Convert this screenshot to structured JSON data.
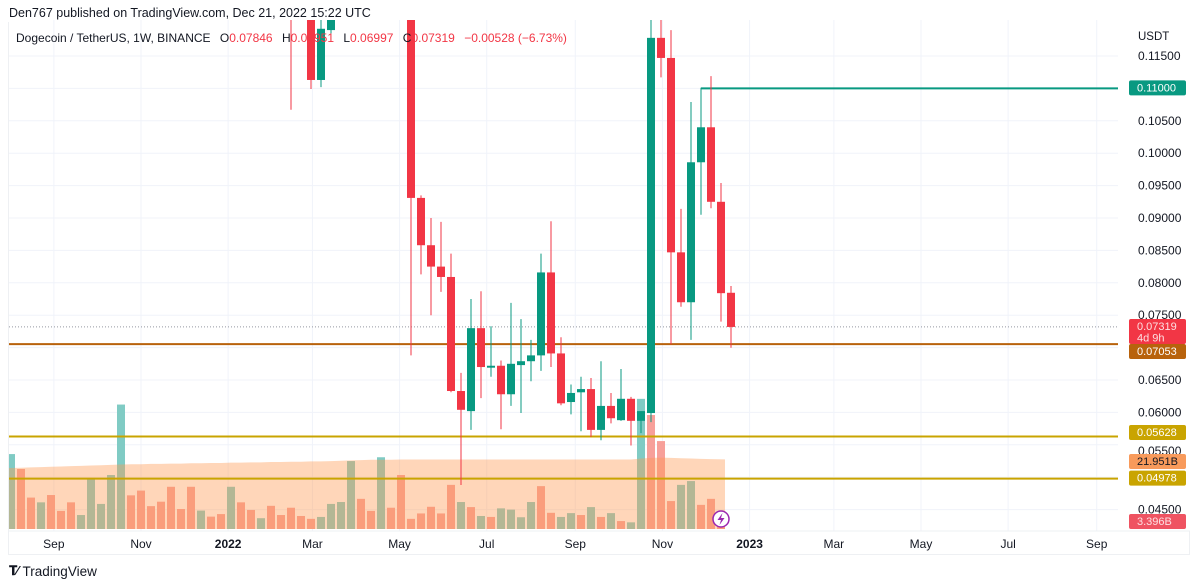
{
  "publisher_line": "Den767 published on TradingView.com, Dec 21, 2022 15:22 UTC",
  "legend": {
    "symbol": "Dogecoin / TetherUS, 1W, BINANCE",
    "o_label": "O",
    "o": "0.07846",
    "h_label": "H",
    "h": "0.07951",
    "l_label": "L",
    "l": "0.06997",
    "c_label": "C",
    "c": "0.07319",
    "change": "−0.00528 (−6.73%)"
  },
  "footer": {
    "logo_text": "TradingView",
    "logo_icon": "tradingview-logo-icon"
  },
  "price_axis": {
    "currency": "USDT",
    "ticks": [
      "0.11500",
      "0.10500",
      "0.10000",
      "0.09500",
      "0.09000",
      "0.08500",
      "0.08000",
      "0.07500",
      "0.06500",
      "0.06000",
      "0.05500",
      "0.04500"
    ]
  },
  "time_axis": [
    {
      "label": "Sep",
      "date": "2021-09-01",
      "bold": false
    },
    {
      "label": "Nov",
      "date": "2021-11-01",
      "bold": false
    },
    {
      "label": "2022",
      "date": "2022-01-01",
      "bold": true
    },
    {
      "label": "Mar",
      "date": "2022-03-01",
      "bold": false
    },
    {
      "label": "May",
      "date": "2022-05-01",
      "bold": false
    },
    {
      "label": "Jul",
      "date": "2022-07-01",
      "bold": false
    },
    {
      "label": "Sep",
      "date": "2022-09-01",
      "bold": false
    },
    {
      "label": "Nov",
      "date": "2022-11-01",
      "bold": false
    },
    {
      "label": "2023",
      "date": "2023-01-01",
      "bold": true
    },
    {
      "label": "Mar",
      "date": "2023-03-01",
      "bold": false
    },
    {
      "label": "May",
      "date": "2023-05-01",
      "bold": false
    },
    {
      "label": "Jul",
      "date": "2023-07-01",
      "bold": false
    },
    {
      "label": "Sep",
      "date": "2023-09-01",
      "bold": false
    }
  ],
  "colors": {
    "up": "#089981",
    "down": "#f23645",
    "vol_up": "#80cbc4",
    "vol_down": "#f7a09a",
    "vol_ma_fill": "rgba(255,152,80,0.4)",
    "grid": "#f0f3fa"
  },
  "levels": [
    {
      "price": 0.11,
      "label": "0.11000",
      "color": "#089981",
      "from": "2022-11-28"
    },
    {
      "price": 0.07053,
      "label": "0.07053",
      "color": "#b8620c",
      "from": null
    },
    {
      "price": 0.05628,
      "label": "0.05628",
      "color": "#c9a400",
      "from": null
    },
    {
      "price": 0.04978,
      "label": "0.04978",
      "color": "#c9a400",
      "from": null
    }
  ],
  "last_price": {
    "price": 0.07319,
    "label": "0.07319",
    "countdown": "4d 9h",
    "color": "#f23645"
  },
  "volume_labels": {
    "ma": {
      "label": "21.951B",
      "value": 21.951,
      "color": "#f89a5b"
    },
    "last": {
      "label": "3.396B",
      "value": 3.396,
      "color": "#ef5361"
    }
  },
  "chart_data": {
    "type": "candlestick",
    "interval": "1W",
    "ylim": [
      0.045,
      0.118
    ],
    "candles_columns": [
      "date",
      "open",
      "high",
      "low",
      "close"
    ],
    "candles": [
      [
        "2022-02-14",
        0.132,
        0.138,
        0.1067,
        0.123
      ],
      [
        "2022-02-28",
        0.13,
        0.135,
        0.1099,
        0.1113
      ],
      [
        "2022-03-07",
        0.1113,
        0.123,
        0.1102,
        0.1192
      ],
      [
        "2022-03-14",
        0.119,
        0.128,
        0.1185,
        0.123
      ],
      [
        "2022-05-09",
        0.14,
        0.145,
        0.0688,
        0.0931
      ],
      [
        "2022-05-16",
        0.0931,
        0.0935,
        0.0813,
        0.0858
      ],
      [
        "2022-05-23",
        0.0858,
        0.09,
        0.075,
        0.0825
      ],
      [
        "2022-05-30",
        0.0825,
        0.0894,
        0.0786,
        0.0809
      ],
      [
        "2022-06-06",
        0.0809,
        0.0845,
        0.0631,
        0.0633
      ],
      [
        "2022-06-13",
        0.0633,
        0.0661,
        0.0488,
        0.0604
      ],
      [
        "2022-06-20",
        0.0602,
        0.0775,
        0.0573,
        0.073
      ],
      [
        "2022-06-27",
        0.073,
        0.0787,
        0.0622,
        0.067
      ],
      [
        "2022-07-04",
        0.0669,
        0.0733,
        0.0655,
        0.0672
      ],
      [
        "2022-07-11",
        0.0672,
        0.068,
        0.0574,
        0.0628
      ],
      [
        "2022-07-18",
        0.0628,
        0.0769,
        0.061,
        0.0675
      ],
      [
        "2022-07-25",
        0.0673,
        0.0744,
        0.0599,
        0.0679
      ],
      [
        "2022-08-01",
        0.0679,
        0.0712,
        0.0648,
        0.0688
      ],
      [
        "2022-08-08",
        0.0688,
        0.0845,
        0.0664,
        0.0816
      ],
      [
        "2022-08-15",
        0.0816,
        0.0895,
        0.067,
        0.0691
      ],
      [
        "2022-08-22",
        0.0691,
        0.0716,
        0.0611,
        0.0614
      ],
      [
        "2022-08-29",
        0.0616,
        0.0643,
        0.0597,
        0.063
      ],
      [
        "2022-09-05",
        0.0631,
        0.0655,
        0.0571,
        0.0636
      ],
      [
        "2022-09-12",
        0.0636,
        0.0653,
        0.0562,
        0.0573
      ],
      [
        "2022-09-19",
        0.0573,
        0.0679,
        0.0557,
        0.061
      ],
      [
        "2022-09-26",
        0.061,
        0.063,
        0.0583,
        0.0591
      ],
      [
        "2022-10-03",
        0.0588,
        0.0667,
        0.0587,
        0.0621
      ],
      [
        "2022-10-10",
        0.0621,
        0.0624,
        0.0549,
        0.0587
      ],
      [
        "2022-10-17",
        0.0587,
        0.0601,
        0.0568,
        0.0602
      ],
      [
        "2022-10-24",
        0.0599,
        0.121,
        0.0585,
        0.1178
      ],
      [
        "2022-10-31",
        0.1178,
        0.121,
        0.1117,
        0.1147
      ],
      [
        "2022-11-07",
        0.1147,
        0.119,
        0.0705,
        0.0847
      ],
      [
        "2022-11-14",
        0.0847,
        0.0914,
        0.0763,
        0.077
      ],
      [
        "2022-11-21",
        0.077,
        0.1079,
        0.0712,
        0.0986
      ],
      [
        "2022-11-28",
        0.0986,
        0.1101,
        0.0905,
        0.104
      ],
      [
        "2022-12-05",
        0.104,
        0.1119,
        0.0915,
        0.0925
      ],
      [
        "2022-12-12",
        0.0925,
        0.0954,
        0.074,
        0.0784
      ],
      [
        "2022-12-19",
        0.07846,
        0.07951,
        0.06997,
        0.07319
      ]
    ],
    "volume_start": "2021-08-02",
    "volume_unit": "B",
    "volume": [
      23.6,
      18.9,
      9.9,
      8.4,
      10.7,
      5.7,
      8.4,
      4.4,
      16.0,
      7.9,
      17.0,
      39.2,
      10.6,
      12.1,
      7.2,
      8.6,
      13.3,
      6.3,
      13.3,
      5.8,
      3.9,
      4.7,
      13.3,
      8.4,
      6.0,
      3.4,
      7.3,
      4.4,
      6.7,
      4.1,
      3.2,
      3.8,
      7.9,
      8.5,
      21.4,
      9.5,
      5.7,
      22.6,
      6.7,
      17.0,
      3.2,
      4.9,
      7.0,
      4.9,
      13.9,
      8.5,
      6.9,
      4.1,
      3.8,
      6.5,
      6.1,
      3.7,
      8.5,
      13.5,
      5.1,
      3.8,
      5.0,
      4.4,
      6.9,
      3.8,
      5.0,
      2.5,
      2.1,
      41.0,
      35.9,
      27.7,
      8.8,
      13.9,
      15.1,
      7.6,
      9.5,
      3.396
    ],
    "volume_dir": [
      "up",
      "down",
      "down",
      "up",
      "down",
      "down",
      "down",
      "up",
      "up",
      "up",
      "up",
      "up",
      "down",
      "down",
      "down",
      "down",
      "down",
      "down",
      "down",
      "up",
      "down",
      "down",
      "up",
      "down",
      "down",
      "up",
      "down",
      "down",
      "down",
      "down",
      "down",
      "up",
      "up",
      "up",
      "up",
      "down",
      "down",
      "up",
      "down",
      "down",
      "down",
      "down",
      "down",
      "down",
      "down",
      "up",
      "down",
      "up",
      "down",
      "up",
      "up",
      "up",
      "up",
      "down",
      "down",
      "up",
      "up",
      "down",
      "up",
      "down",
      "up",
      "down",
      "up",
      "up",
      "down",
      "down",
      "down",
      "up",
      "up",
      "down",
      "down",
      "down"
    ],
    "volume_ma": [
      19.2,
      19.3,
      19.4,
      19.5,
      19.6,
      19.7,
      19.8,
      19.9,
      20.0,
      20.1,
      20.2,
      20.3,
      20.4,
      20.4,
      20.5,
      20.5,
      20.6,
      20.6,
      20.7,
      20.7,
      20.8,
      20.8,
      20.9,
      20.9,
      21.0,
      21.0,
      21.1,
      21.1,
      21.2,
      21.2,
      21.3,
      21.3,
      21.4,
      21.5,
      21.6,
      21.7,
      21.8,
      21.8,
      21.8,
      21.9,
      21.9,
      21.9,
      21.9,
      21.9,
      21.9,
      21.9,
      21.9,
      21.9,
      21.9,
      21.9,
      21.9,
      21.9,
      21.9,
      21.9,
      21.9,
      21.9,
      21.9,
      21.9,
      21.9,
      21.9,
      21.9,
      21.9,
      21.9,
      22.2,
      22.4,
      22.5,
      22.4,
      22.3,
      22.2,
      22.1,
      22.0,
      21.951
    ]
  }
}
